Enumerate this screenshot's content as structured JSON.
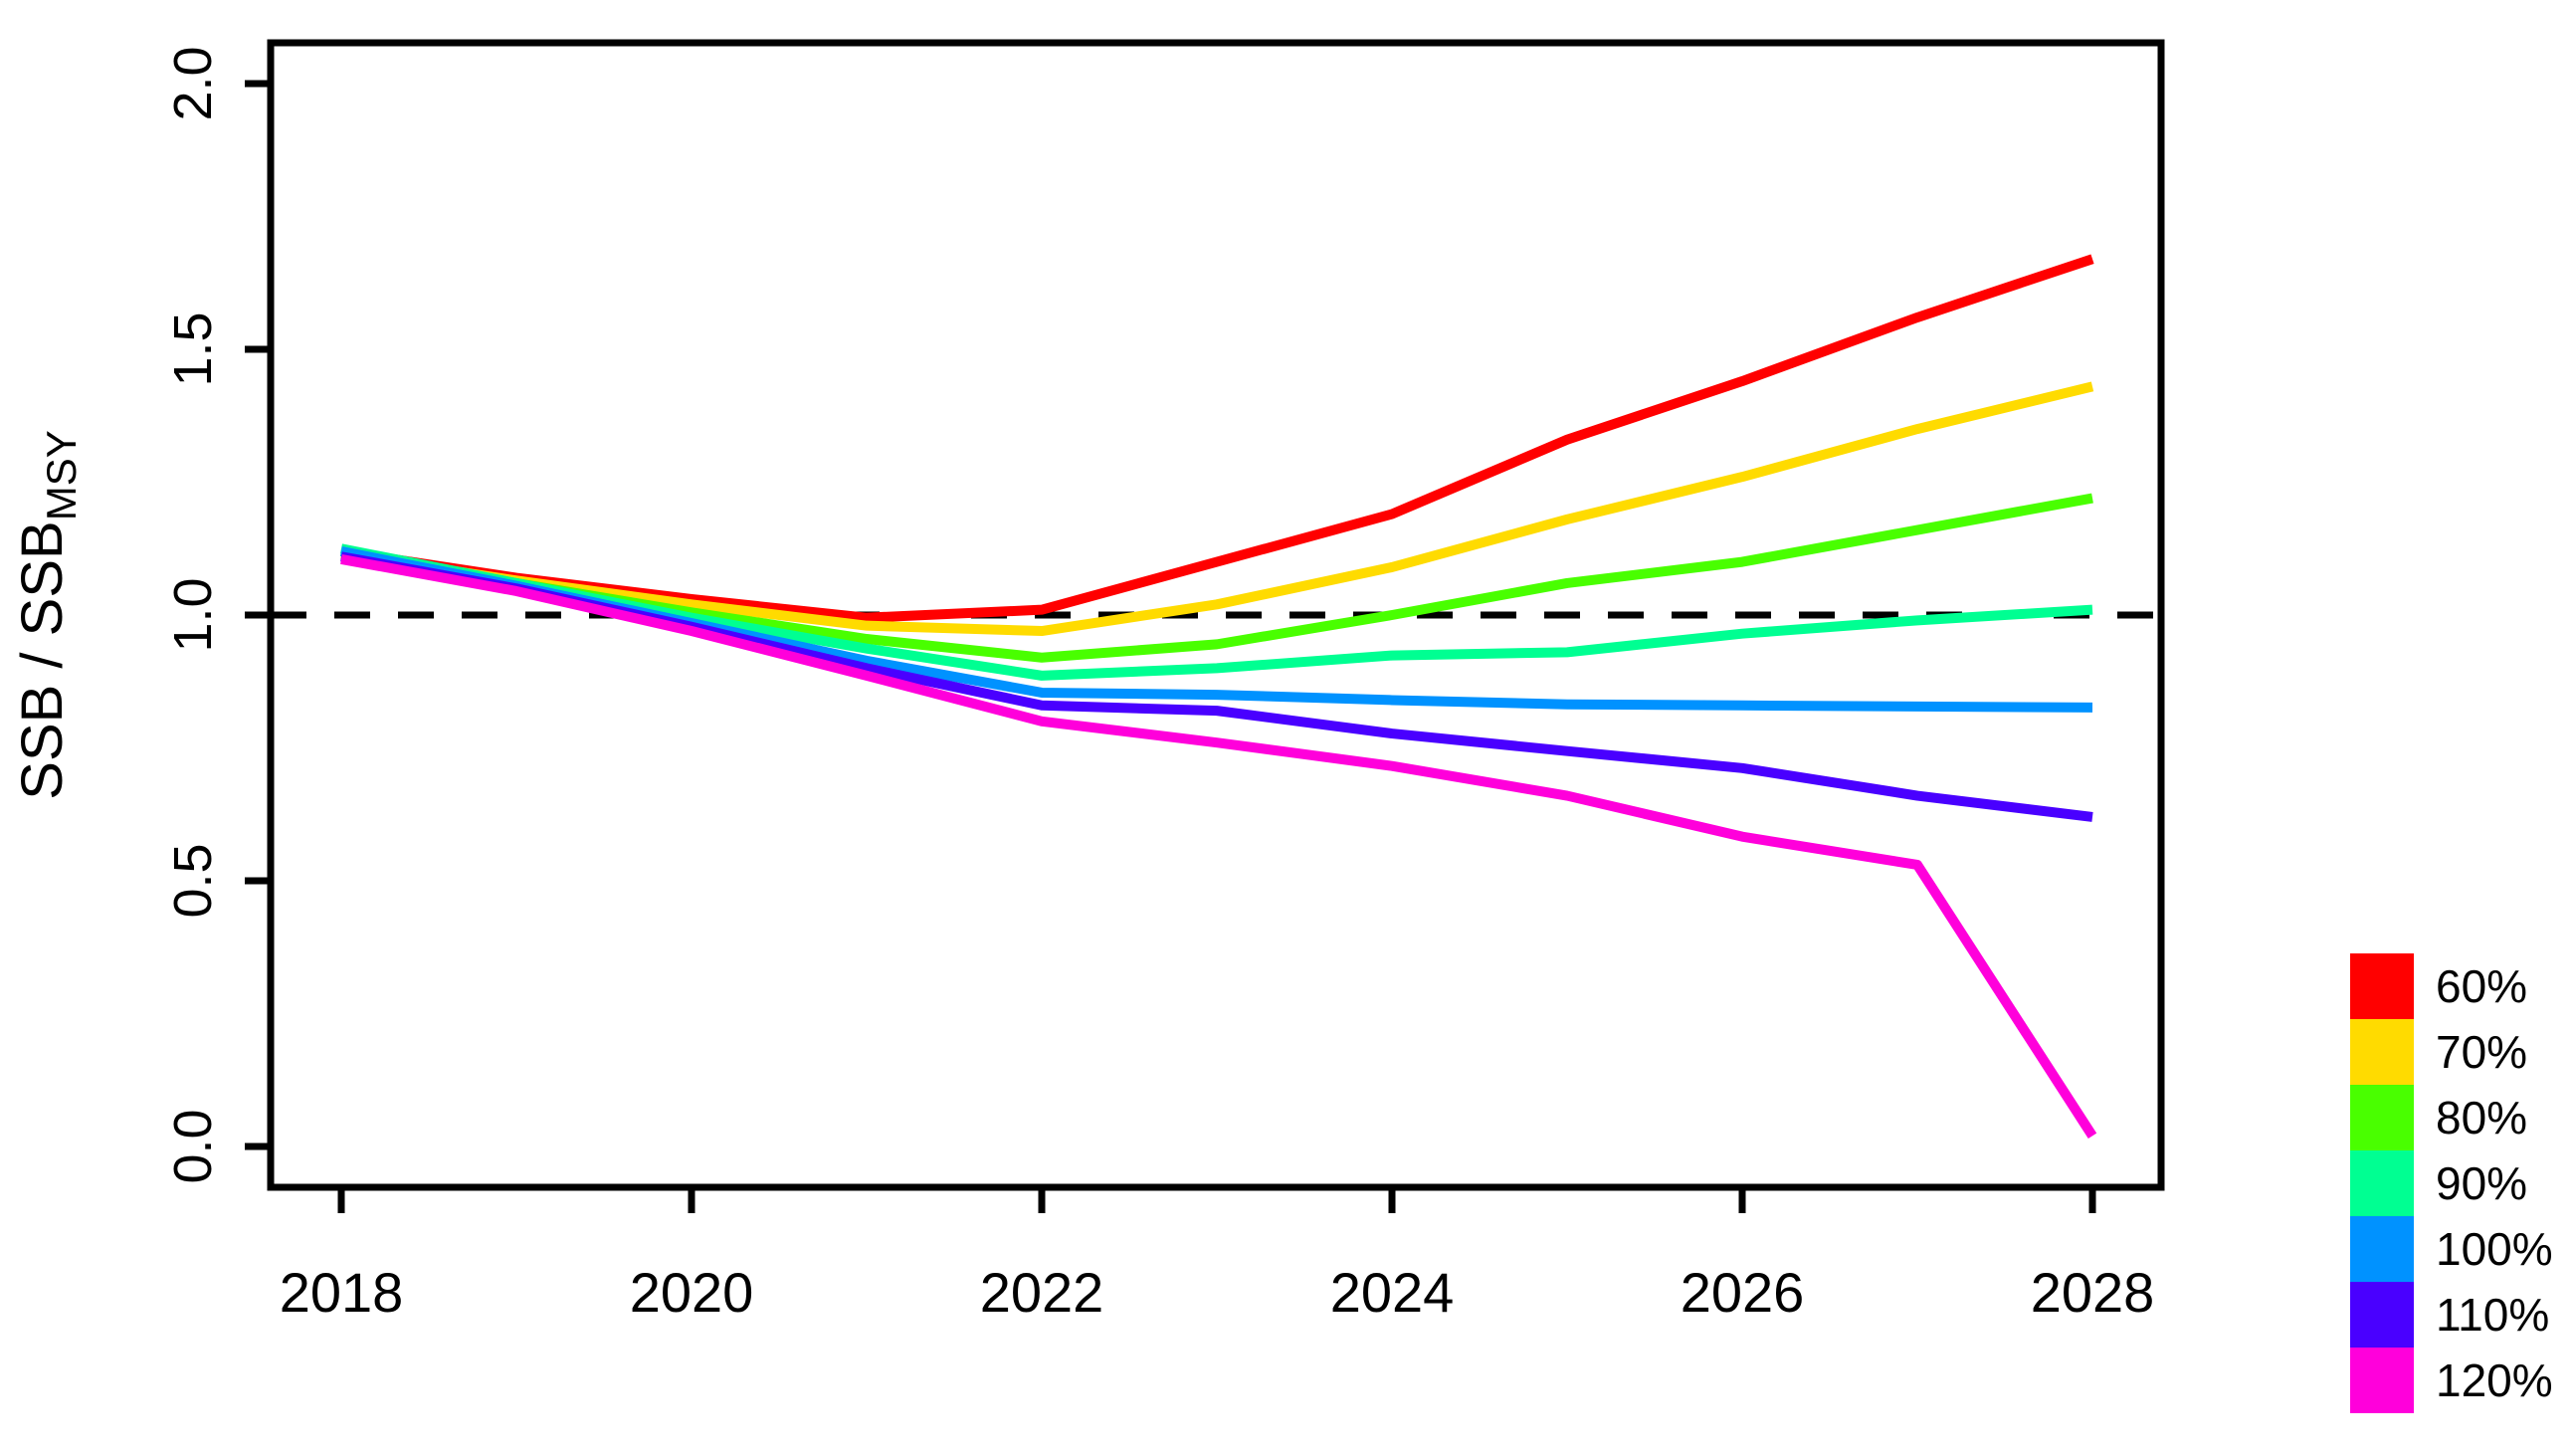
{
  "chart_data": {
    "type": "line",
    "title": "",
    "xlabel": "",
    "ylabel": "SSB / SSB_MSY",
    "ylabel_main": "SSB / SSB",
    "ylabel_sub": "MSY",
    "x": [
      2018,
      2019,
      2020,
      2021,
      2022,
      2023,
      2024,
      2025,
      2026,
      2027,
      2028
    ],
    "x_tick_labels": [
      "2018",
      "2020",
      "2022",
      "2024",
      "2026",
      "2028"
    ],
    "x_tick_values": [
      2018,
      2020,
      2022,
      2024,
      2026,
      2028
    ],
    "y_tick_labels": [
      "0.0",
      "0.5",
      "1.0",
      "1.5",
      "2.0"
    ],
    "y_tick_values": [
      0.0,
      0.5,
      1.0,
      1.5,
      2.0
    ],
    "xlim": [
      2017.6,
      2028.4
    ],
    "ylim": [
      -0.08,
      2.08
    ],
    "grid": false,
    "legend_position": "outside-bottom-right",
    "reference_line": {
      "value": 1.0,
      "style": "dashed",
      "color": "#000000"
    },
    "series": [
      {
        "name": "60%",
        "color": "#FF0000",
        "values": [
          1.12,
          1.07,
          1.03,
          0.995,
          1.01,
          1.1,
          1.19,
          1.33,
          1.44,
          1.56,
          1.67
        ]
      },
      {
        "name": "70%",
        "color": "#FFDB00",
        "values": [
          1.115,
          1.065,
          1.02,
          0.98,
          0.97,
          1.02,
          1.09,
          1.18,
          1.26,
          1.35,
          1.43
        ]
      },
      {
        "name": "80%",
        "color": "#49FF00",
        "values": [
          1.12,
          1.06,
          1.005,
          0.955,
          0.92,
          0.945,
          1.0,
          1.06,
          1.1,
          1.16,
          1.22
        ]
      },
      {
        "name": "90%",
        "color": "#00FF92",
        "values": [
          1.125,
          1.06,
          0.995,
          0.937,
          0.886,
          0.9,
          0.924,
          0.93,
          0.965,
          0.99,
          1.01
        ]
      },
      {
        "name": "100%",
        "color": "#0092FF",
        "values": [
          1.12,
          1.055,
          0.985,
          0.914,
          0.854,
          0.85,
          0.84,
          0.832,
          0.83,
          0.828,
          0.826
        ]
      },
      {
        "name": "110%",
        "color": "#4900FF",
        "values": [
          1.11,
          1.05,
          0.978,
          0.9,
          0.83,
          0.82,
          0.777,
          0.744,
          0.712,
          0.66,
          0.62
        ]
      },
      {
        "name": "120%",
        "color": "#FF00DB",
        "values": [
          1.105,
          1.045,
          0.97,
          0.886,
          0.8,
          0.76,
          0.716,
          0.66,
          0.583,
          0.53,
          0.02
        ]
      }
    ]
  },
  "colors": {
    "background": "#ffffff",
    "axis": "#000000",
    "text": "#000000"
  }
}
